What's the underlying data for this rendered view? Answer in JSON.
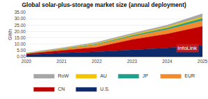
{
  "chart_data": {
    "type": "area",
    "title": "Global solar-plus-storage market size (annual deployment)",
    "y_label": "GWh",
    "x": [
      2020,
      2021,
      2022,
      2023,
      2024,
      2025
    ],
    "xlim": [
      2020,
      2025
    ],
    "xticks": [
      2020,
      2021,
      2022,
      2023,
      2024,
      2025
    ],
    "ylim": [
      0,
      35
    ],
    "yticks": [
      {
        "value": 0,
        "label": "0.00"
      },
      {
        "value": 5,
        "label": "5.00"
      },
      {
        "value": 10,
        "label": "10.00"
      },
      {
        "value": 15,
        "label": "15.00"
      },
      {
        "value": 20,
        "label": "20.00"
      },
      {
        "value": 25,
        "label": "25.00"
      },
      {
        "value": 30,
        "label": "30.00"
      },
      {
        "value": 35,
        "label": "35.00"
      }
    ],
    "stacked": true,
    "grid": true,
    "legend": "bottom",
    "annotations": [
      "InfoLink"
    ],
    "series": [
      {
        "name": "U.S.",
        "color": "#0d2b6b",
        "values": [
          1.5,
          3.0,
          4.0,
          5.5,
          7.0,
          9.0
        ]
      },
      {
        "name": "CN",
        "color": "#c00000",
        "values": [
          0.8,
          2.0,
          3.5,
          8.0,
          11.0,
          15.0
        ]
      },
      {
        "name": "EUR",
        "color": "#f28a30",
        "values": [
          0.3,
          0.8,
          2.0,
          2.5,
          3.5,
          4.5
        ]
      },
      {
        "name": "JP",
        "color": "#1f9e89",
        "values": [
          0.1,
          0.3,
          0.5,
          0.8,
          1.2,
          1.8
        ]
      },
      {
        "name": "AU",
        "color": "#f5c400",
        "values": [
          0.1,
          0.3,
          0.5,
          0.7,
          1.0,
          1.2
        ]
      },
      {
        "name": "RoW",
        "color": "#a6a6a6",
        "values": [
          0.2,
          0.6,
          1.0,
          1.0,
          1.3,
          2.5
        ]
      }
    ]
  }
}
